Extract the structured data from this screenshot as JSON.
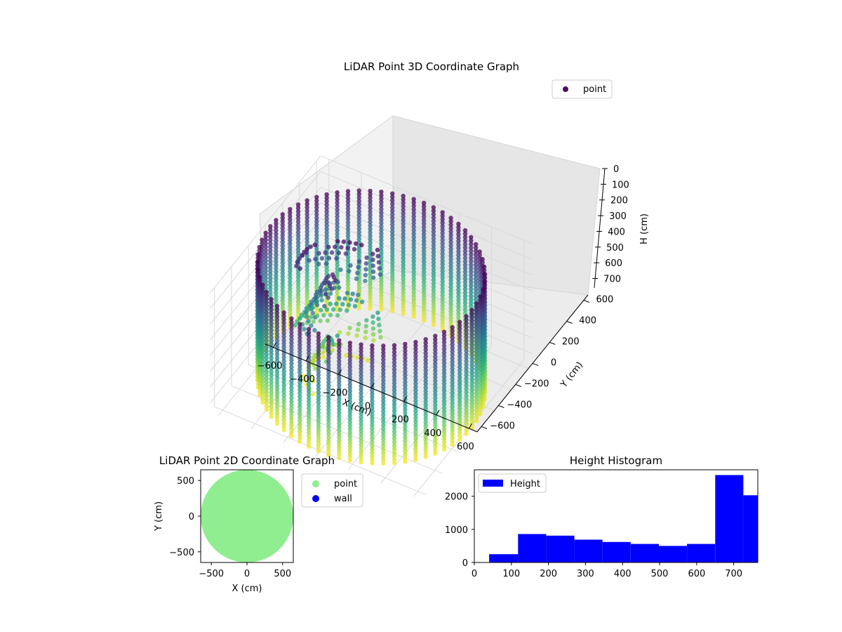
{
  "chart_data": [
    {
      "type": "scatter",
      "projection": "3d",
      "title": "LiDAR Point 3D Coordinate Graph",
      "xlabel": "X (cm)",
      "ylabel": "Y (cm)",
      "zlabel": "H (cm)",
      "xticks": [
        "−600",
        "−400",
        "−200",
        "0",
        "200",
        "400",
        "600"
      ],
      "yticks": [
        "−600",
        "−400",
        "−200",
        "0",
        "200",
        "400",
        "600"
      ],
      "zticks": [
        "0",
        "100",
        "200",
        "300",
        "400",
        "500",
        "600",
        "700"
      ],
      "xlim": [
        -650,
        650
      ],
      "ylim": [
        -650,
        650
      ],
      "zlim": [
        0,
        760
      ],
      "z_axis_inverted": true,
      "colormap": "viridis",
      "legend": {
        "placement": "top-right",
        "entries": [
          {
            "label": "point",
            "color": "#46105f"
          }
        ]
      },
      "series": [
        {
          "name": "point",
          "shape": "cylindrical wall of vertical point columns",
          "radius": 620,
          "height_range": [
            0,
            760
          ]
        }
      ],
      "grid": true
    },
    {
      "type": "scatter",
      "title": "LiDAR Point 2D Coordinate Graph",
      "xlabel": "X (cm)",
      "ylabel": "Y (cm)",
      "xticks": [
        "−500",
        "0",
        "500"
      ],
      "yticks": [
        "−500",
        "0",
        "500"
      ],
      "xlim": [
        -650,
        650
      ],
      "ylim": [
        -650,
        650
      ],
      "legend": {
        "placement": "outside-right",
        "entries": [
          {
            "label": "point",
            "color": "#90ee90"
          },
          {
            "label": "wall",
            "color": "#0000ff"
          }
        ]
      },
      "series": [
        {
          "name": "point",
          "color": "#90ee90",
          "shape": "filled disk",
          "radius": 620
        },
        {
          "name": "wall",
          "color": "#0000ff",
          "points": []
        }
      ],
      "grid": false
    },
    {
      "type": "bar",
      "subtype": "histogram",
      "title": "Height Histogram",
      "xlabel": "",
      "ylabel": "",
      "xticks": [
        "0",
        "100",
        "200",
        "300",
        "400",
        "500",
        "600",
        "700"
      ],
      "yticks": [
        "0",
        "1000",
        "2000"
      ],
      "xlim": [
        0,
        765
      ],
      "ylim": [
        0,
        2800
      ],
      "bins": [
        {
          "x0": 40,
          "x1": 118,
          "count": 250
        },
        {
          "x0": 118,
          "x1": 194,
          "count": 860
        },
        {
          "x0": 194,
          "x1": 270,
          "count": 810
        },
        {
          "x0": 270,
          "x1": 346,
          "count": 690
        },
        {
          "x0": 346,
          "x1": 422,
          "count": 620
        },
        {
          "x0": 422,
          "x1": 498,
          "count": 560
        },
        {
          "x0": 498,
          "x1": 574,
          "count": 500
        },
        {
          "x0": 574,
          "x1": 650,
          "count": 560
        },
        {
          "x0": 650,
          "x1": 726,
          "count": 2640
        },
        {
          "x0": 726,
          "x1": 802,
          "count": 2030
        }
      ],
      "color": "#0000ff",
      "legend": {
        "placement": "top-left",
        "entries": [
          {
            "label": "Height",
            "color": "#0000ff"
          }
        ]
      },
      "grid": false
    }
  ]
}
